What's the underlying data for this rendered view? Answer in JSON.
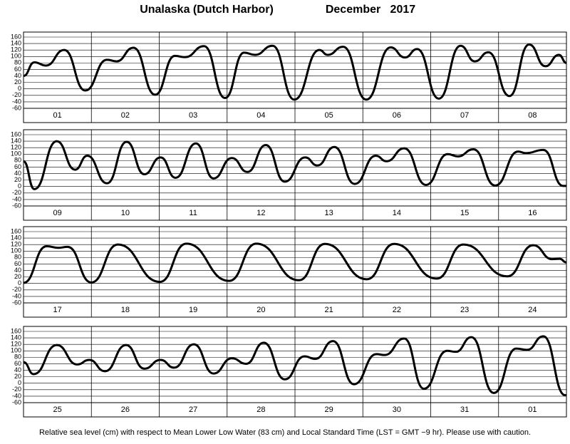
{
  "title": "Unalaska (Dutch Harbor)",
  "date": "December   2017",
  "note": "Relative sea level (cm) with respect to Mean Lower Low Water (83 cm) and Local Standard Time (LST = GMT −9 hr). Please use with caution.",
  "chart_data": [
    {
      "type": "line",
      "color": "#000000",
      "xlim": [
        0,
        8
      ],
      "ylim": [
        -60,
        160
      ],
      "yticks": [
        -60,
        -40,
        -20,
        0,
        20,
        40,
        60,
        80,
        100,
        120,
        140,
        160
      ],
      "grid": true,
      "xticks": [
        {
          "value": 0.5,
          "label": "01"
        },
        {
          "value": 1.5,
          "label": "02"
        },
        {
          "value": 2.5,
          "label": "03"
        },
        {
          "value": 3.5,
          "label": "04"
        },
        {
          "value": 4.5,
          "label": "05"
        },
        {
          "value": 5.5,
          "label": "06"
        },
        {
          "value": 6.5,
          "label": "07"
        },
        {
          "value": 7.5,
          "label": "08"
        }
      ],
      "x": [
        0,
        0.16,
        0.33,
        0.6,
        0.91,
        1.23,
        1.37,
        1.62,
        1.94,
        2.23,
        2.38,
        2.66,
        2.97,
        3.25,
        3.41,
        3.67,
        3.99,
        4.36,
        4.48,
        4.71,
        5.05,
        5.41,
        5.62,
        5.8,
        6.12,
        6.44,
        6.65,
        6.85,
        7.16,
        7.45,
        7.69,
        7.89,
        8
      ],
      "values": [
        40,
        82,
        72,
        120,
        -5,
        90,
        85,
        127,
        -18,
        102,
        98,
        132,
        -28,
        112,
        105,
        133,
        -33,
        120,
        105,
        130,
        -33,
        128,
        97,
        123,
        -30,
        133,
        85,
        113,
        -22,
        137,
        70,
        105,
        80
      ]
    },
    {
      "type": "line",
      "color": "#000000",
      "xlim": [
        0,
        8
      ],
      "ylim": [
        -60,
        160
      ],
      "yticks": [
        -60,
        -40,
        -20,
        0,
        20,
        40,
        60,
        80,
        100,
        120,
        140,
        160
      ],
      "grid": true,
      "xticks": [
        {
          "value": 0.5,
          "label": "09"
        },
        {
          "value": 1.5,
          "label": "10"
        },
        {
          "value": 2.5,
          "label": "11"
        },
        {
          "value": 3.5,
          "label": "12"
        },
        {
          "value": 4.5,
          "label": "13"
        },
        {
          "value": 5.5,
          "label": "14"
        },
        {
          "value": 6.5,
          "label": "15"
        },
        {
          "value": 7.5,
          "label": "16"
        }
      ],
      "x": [
        0,
        0.16,
        0.49,
        0.76,
        0.94,
        1.23,
        1.52,
        1.78,
        2.02,
        2.24,
        2.54,
        2.8,
        3.07,
        3.3,
        3.57,
        3.85,
        4.15,
        4.33,
        4.58,
        4.88,
        5.19,
        5.35,
        5.61,
        5.93,
        6.25,
        6.4,
        6.63,
        6.95,
        7.29,
        7.4,
        7.66,
        7.95,
        8
      ],
      "values": [
        78,
        -8,
        140,
        52,
        95,
        10,
        138,
        38,
        90,
        27,
        133,
        25,
        88,
        45,
        128,
        15,
        90,
        65,
        122,
        8,
        95,
        78,
        118,
        5,
        100,
        93,
        115,
        3,
        108,
        103,
        113,
        2,
        2
      ]
    },
    {
      "type": "line",
      "color": "#000000",
      "xlim": [
        0,
        8
      ],
      "ylim": [
        -60,
        160
      ],
      "yticks": [
        -60,
        -40,
        -20,
        0,
        20,
        40,
        60,
        80,
        100,
        120,
        140,
        160
      ],
      "grid": true,
      "xticks": [
        {
          "value": 0.5,
          "label": "17"
        },
        {
          "value": 1.5,
          "label": "18"
        },
        {
          "value": 2.5,
          "label": "19"
        },
        {
          "value": 3.5,
          "label": "20"
        },
        {
          "value": 4.5,
          "label": "21"
        },
        {
          "value": 5.5,
          "label": "22"
        },
        {
          "value": 6.5,
          "label": "23"
        },
        {
          "value": 7.5,
          "label": "24"
        }
      ],
      "x": [
        0,
        0.34,
        0.51,
        0.65,
        1.0,
        1.39,
        2.01,
        2.4,
        3.03,
        3.43,
        4.06,
        4.44,
        5.06,
        5.46,
        6.09,
        6.48,
        7.13,
        7.51,
        7.79,
        7.9,
        8
      ],
      "values": [
        2,
        115,
        110,
        113,
        3,
        120,
        5,
        123,
        8,
        123,
        10,
        122,
        13,
        122,
        15,
        120,
        22,
        118,
        75,
        76,
        65
      ]
    },
    {
      "type": "line",
      "color": "#000000",
      "xlim": [
        0,
        8
      ],
      "ylim": [
        -60,
        160
      ],
      "yticks": [
        -60,
        -40,
        -20,
        0,
        20,
        40,
        60,
        80,
        100,
        120,
        140,
        160
      ],
      "grid": true,
      "xticks": [
        {
          "value": 0.5,
          "label": "25"
        },
        {
          "value": 1.5,
          "label": "26"
        },
        {
          "value": 2.5,
          "label": "27"
        },
        {
          "value": 3.5,
          "label": "28"
        },
        {
          "value": 4.5,
          "label": "29"
        },
        {
          "value": 5.5,
          "label": "30"
        },
        {
          "value": 6.5,
          "label": "31"
        },
        {
          "value": 7.5,
          "label": "01"
        }
      ],
      "x": [
        0,
        0.15,
        0.49,
        0.79,
        0.97,
        1.2,
        1.51,
        1.78,
        2.02,
        2.22,
        2.51,
        2.8,
        3.07,
        3.28,
        3.54,
        3.85,
        4.14,
        4.3,
        4.56,
        4.87,
        5.2,
        5.32,
        5.61,
        5.9,
        6.24,
        6.37,
        6.6,
        6.93,
        7.26,
        7.42,
        7.66,
        7.98,
        8
      ],
      "values": [
        65,
        28,
        118,
        58,
        72,
        37,
        118,
        45,
        72,
        48,
        120,
        30,
        77,
        60,
        125,
        12,
        83,
        75,
        130,
        -3,
        90,
        87,
        138,
        -17,
        100,
        97,
        142,
        -30,
        107,
        103,
        145,
        -37,
        -37
      ]
    }
  ]
}
